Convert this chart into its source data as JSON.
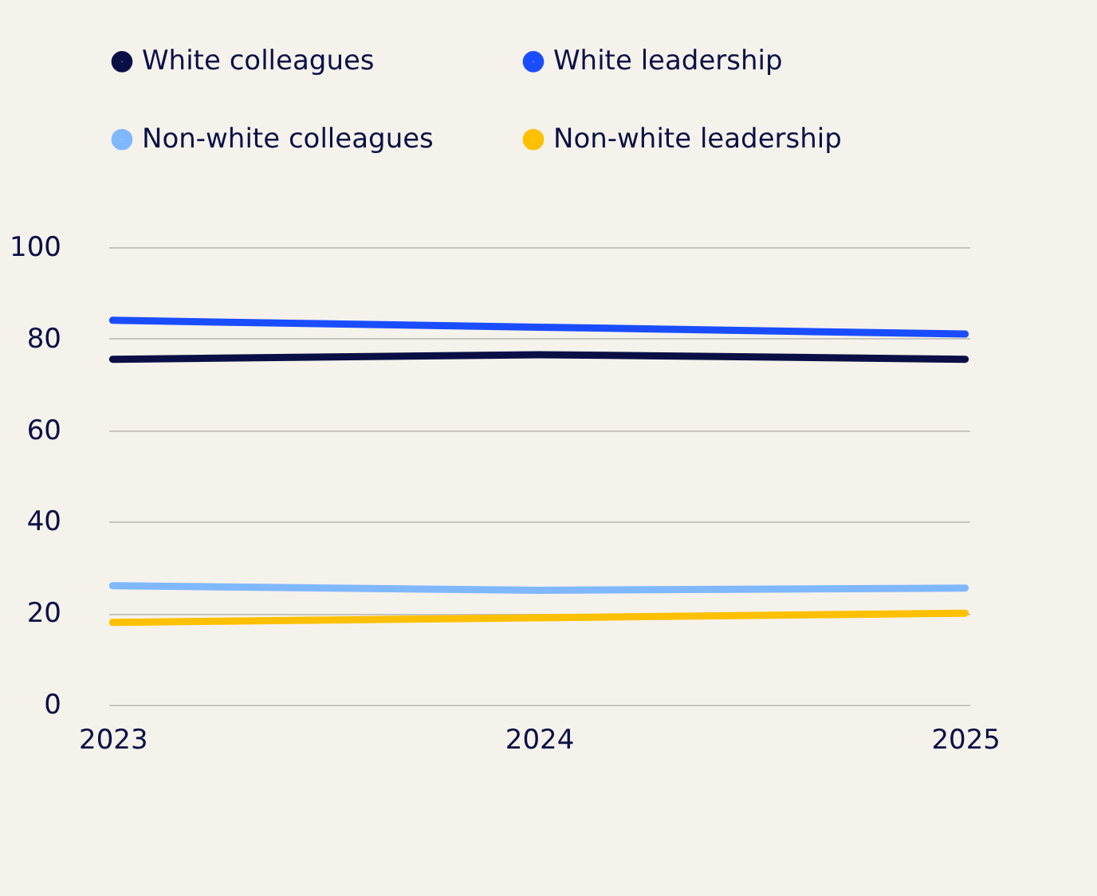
{
  "chart_data": {
    "type": "line",
    "categories": [
      "2023",
      "2024",
      "2025"
    ],
    "series": [
      {
        "name": "White colleagues",
        "color": "#0a1045",
        "values": [
          75.5,
          76.5,
          75.5
        ]
      },
      {
        "name": "White leadership",
        "color": "#1a4dff",
        "values": [
          84,
          82.5,
          81
        ]
      },
      {
        "name": "Non-white colleagues",
        "color": "#80b8ff",
        "values": [
          26,
          25,
          25.5
        ]
      },
      {
        "name": "Non-white leadership",
        "color": "#ffc000",
        "values": [
          18,
          19,
          20
        ]
      }
    ],
    "ylim": [
      0,
      100
    ],
    "yticks": [
      0,
      20,
      40,
      60,
      80,
      100
    ],
    "grid": "y",
    "legend": "top left",
    "marker": "none",
    "line_style": "solid"
  }
}
